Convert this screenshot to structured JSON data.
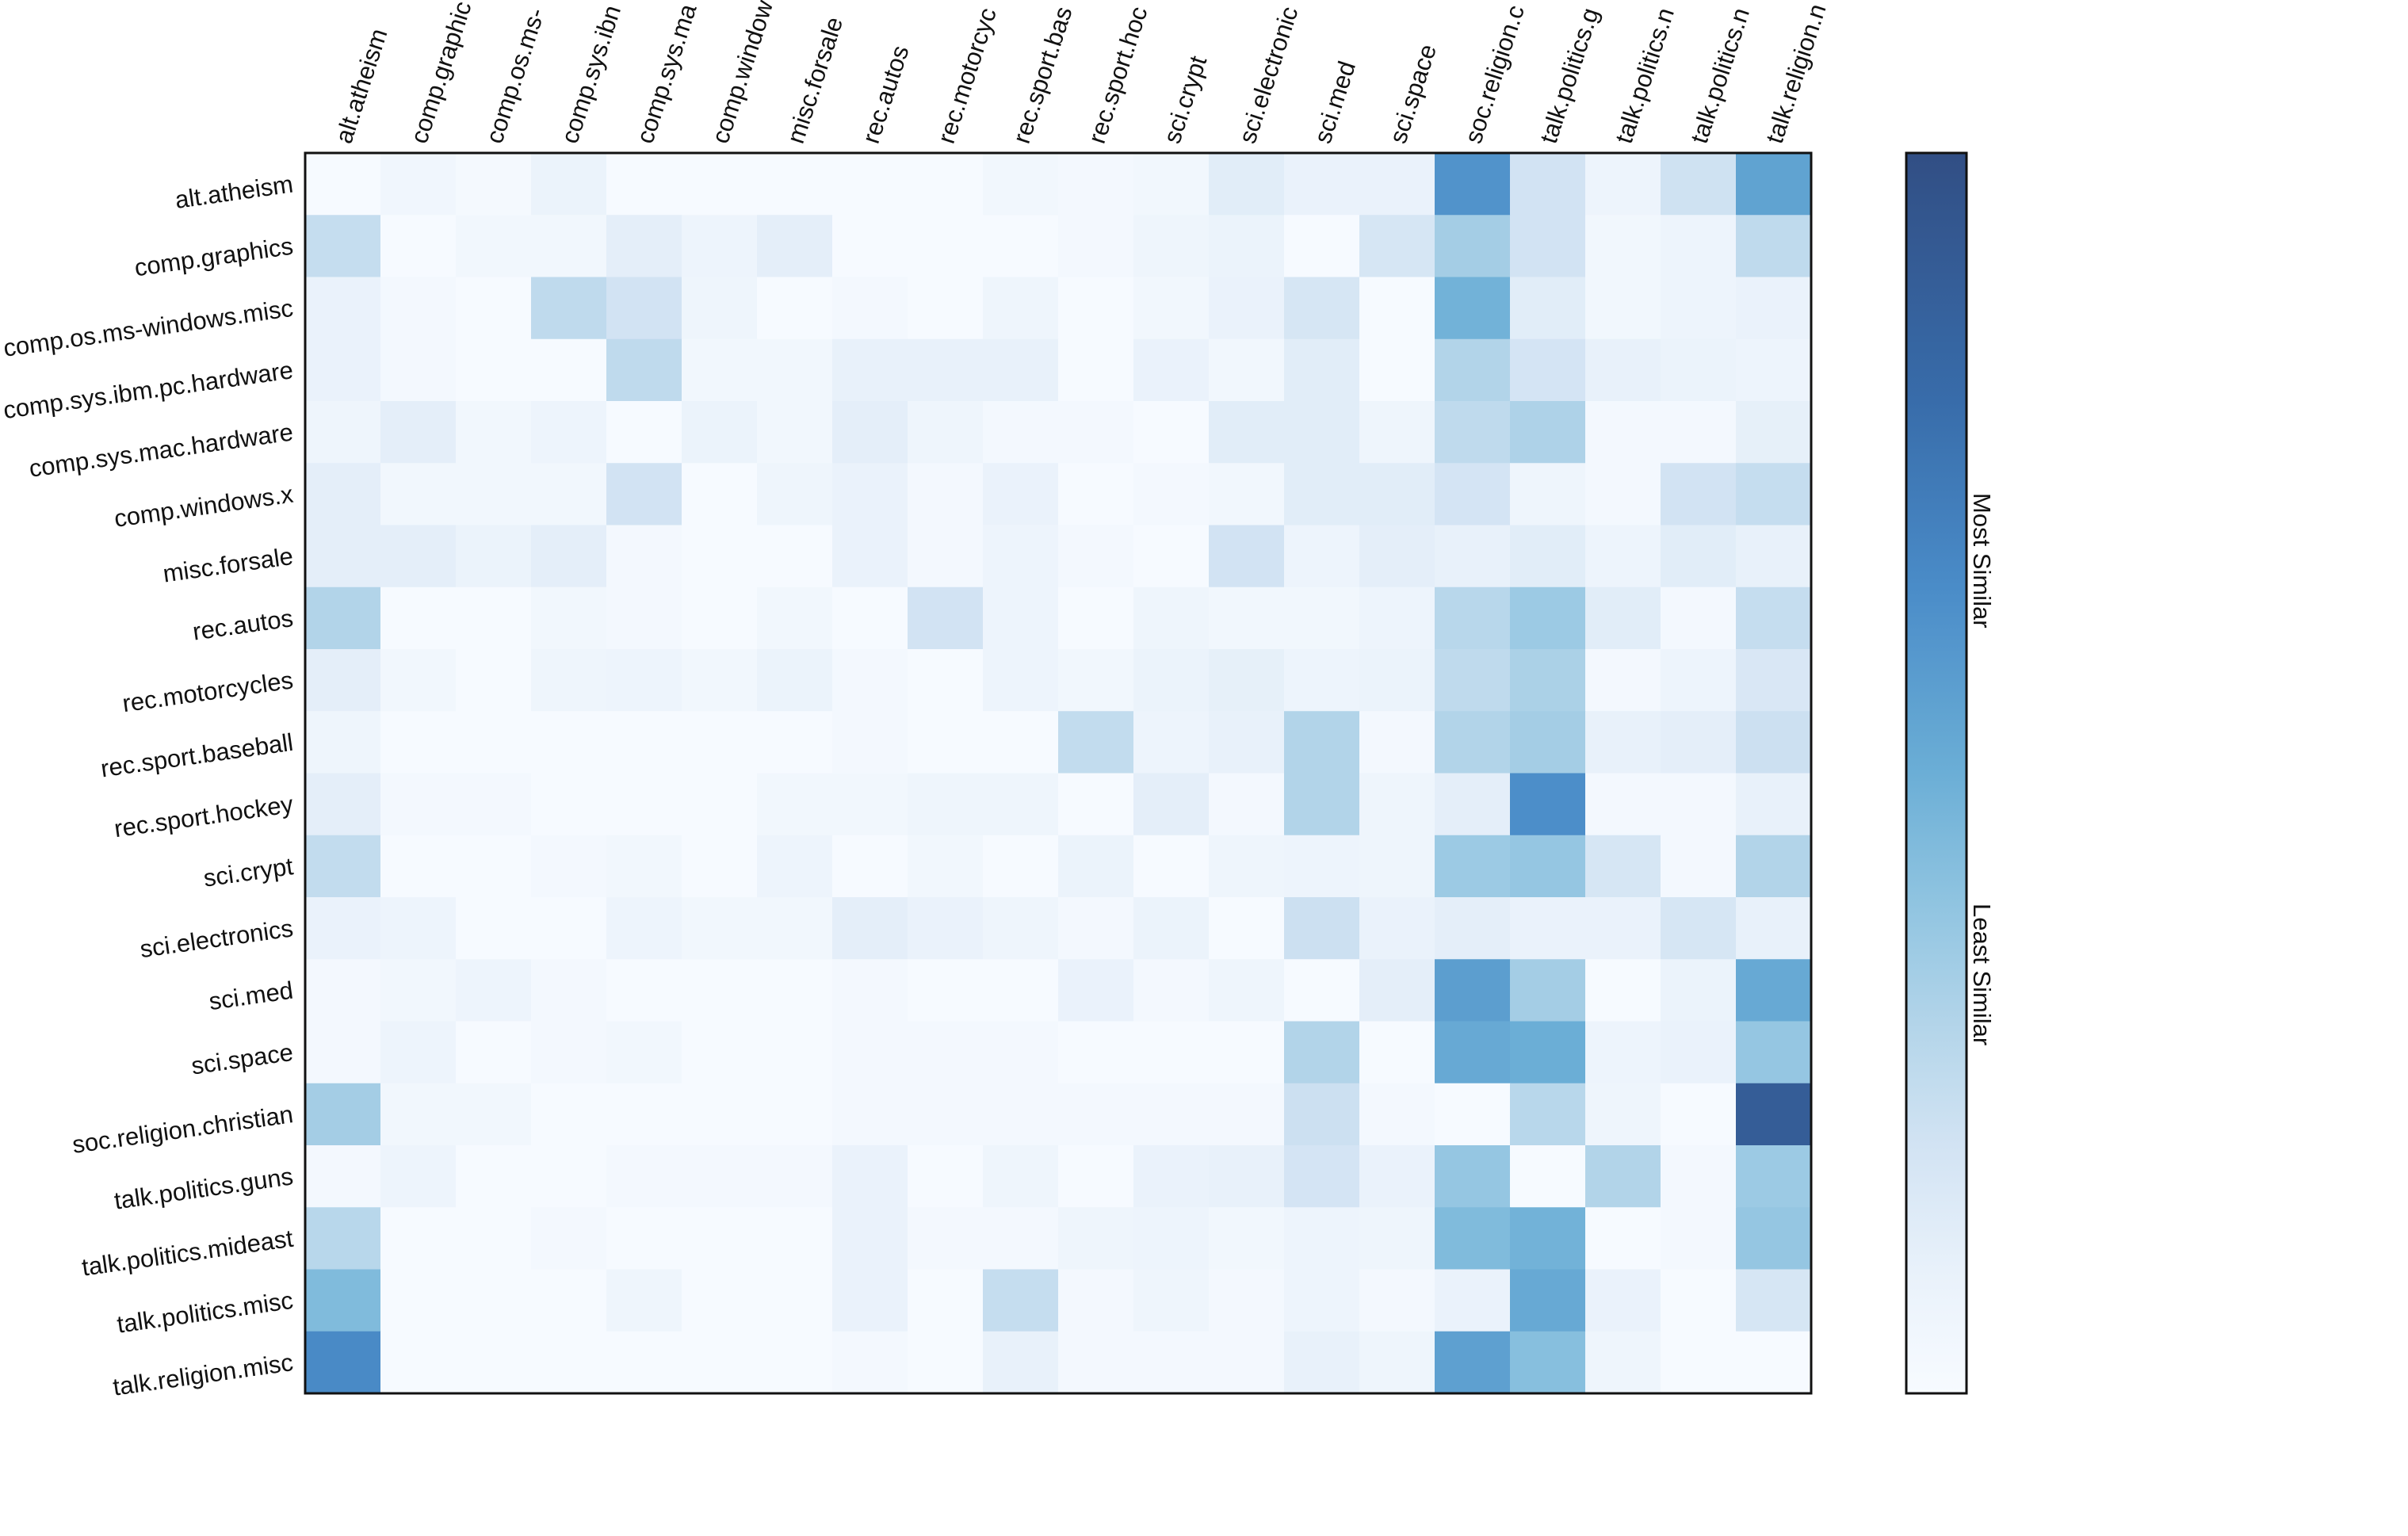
{
  "chart_data": {
    "type": "heatmap",
    "title": "",
    "xlabel": "",
    "ylabel": "",
    "x_categories": [
      "alt.atheism",
      "comp.graphics",
      "comp.os.ms-windows.misc",
      "comp.sys.ibm.pc.hardware",
      "comp.sys.mac.hardware",
      "comp.windows.x",
      "misc.forsale",
      "rec.autos",
      "rec.motorcycles",
      "rec.sport.baseball",
      "rec.sport.hockey",
      "sci.crypt",
      "sci.electronics",
      "sci.med",
      "sci.space",
      "soc.religion.christian",
      "talk.politics.guns",
      "talk.politics.mideast",
      "talk.politics.misc",
      "talk.religion.misc"
    ],
    "x_tick_labels_visible": [
      "alt.atheism",
      "comp.graphic",
      "comp.os.ms-",
      "comp.sys.ibn",
      "comp.sys.ma",
      "comp.window",
      "misc.forsale",
      "rec.autos",
      "rec.motorcyc",
      "rec.sport.bas",
      "rec.sport.hoc",
      "sci.crypt",
      "sci.electronic",
      "sci.med",
      "sci.space",
      "soc.religion.c",
      "talk.politics.g",
      "talk.politics.n",
      "talk.politics.n",
      "talk.religion.n"
    ],
    "y_categories": [
      "alt.atheism",
      "comp.graphics",
      "comp.os.ms-windows.misc",
      "comp.sys.ibm.pc.hardware",
      "comp.sys.mac.hardware",
      "comp.windows.x",
      "misc.forsale",
      "rec.autos",
      "rec.motorcycles",
      "rec.sport.baseball",
      "rec.sport.hockey",
      "sci.crypt",
      "sci.electronics",
      "sci.med",
      "sci.space",
      "soc.religion.christian",
      "talk.politics.guns",
      "talk.politics.mideast",
      "talk.politics.misc",
      "talk.religion.misc"
    ],
    "values": [
      [
        0.01,
        0.05,
        0.02,
        0.08,
        0.01,
        0.01,
        0.01,
        0.01,
        0.01,
        0.04,
        0.03,
        0.04,
        0.13,
        0.09,
        0.09,
        0.62,
        0.2,
        0.07,
        0.21,
        0.55
      ],
      [
        0.24,
        0.01,
        0.04,
        0.04,
        0.12,
        0.07,
        0.12,
        0.01,
        0.01,
        0.01,
        0.03,
        0.06,
        0.08,
        0.01,
        0.18,
        0.34,
        0.2,
        0.04,
        0.07,
        0.26
      ],
      [
        0.09,
        0.03,
        0.01,
        0.26,
        0.2,
        0.06,
        0.01,
        0.03,
        0.01,
        0.06,
        0.01,
        0.04,
        0.09,
        0.18,
        0.01,
        0.48,
        0.13,
        0.04,
        0.07,
        0.09
      ],
      [
        0.09,
        0.03,
        0.01,
        0.01,
        0.26,
        0.04,
        0.04,
        0.1,
        0.1,
        0.1,
        0.01,
        0.09,
        0.04,
        0.13,
        0.01,
        0.3,
        0.19,
        0.1,
        0.08,
        0.07
      ],
      [
        0.06,
        0.12,
        0.04,
        0.07,
        0.01,
        0.08,
        0.04,
        0.12,
        0.06,
        0.03,
        0.03,
        0.01,
        0.13,
        0.13,
        0.06,
        0.26,
        0.31,
        0.03,
        0.03,
        0.11
      ],
      [
        0.12,
        0.04,
        0.04,
        0.04,
        0.2,
        0.01,
        0.06,
        0.09,
        0.03,
        0.09,
        0.01,
        0.03,
        0.04,
        0.13,
        0.13,
        0.19,
        0.06,
        0.03,
        0.2,
        0.24
      ],
      [
        0.12,
        0.12,
        0.08,
        0.12,
        0.03,
        0.01,
        0.01,
        0.09,
        0.03,
        0.07,
        0.03,
        0.01,
        0.2,
        0.07,
        0.12,
        0.1,
        0.13,
        0.07,
        0.13,
        0.1
      ],
      [
        0.3,
        0.01,
        0.01,
        0.04,
        0.03,
        0.01,
        0.04,
        0.01,
        0.2,
        0.07,
        0.01,
        0.06,
        0.04,
        0.04,
        0.07,
        0.28,
        0.36,
        0.13,
        0.03,
        0.24
      ],
      [
        0.12,
        0.04,
        0.01,
        0.06,
        0.07,
        0.04,
        0.08,
        0.03,
        0.01,
        0.07,
        0.04,
        0.08,
        0.11,
        0.07,
        0.08,
        0.26,
        0.32,
        0.03,
        0.07,
        0.17
      ],
      [
        0.06,
        0.01,
        0.01,
        0.01,
        0.01,
        0.01,
        0.01,
        0.03,
        0.01,
        0.01,
        0.25,
        0.07,
        0.1,
        0.3,
        0.03,
        0.3,
        0.34,
        0.1,
        0.12,
        0.22
      ],
      [
        0.12,
        0.03,
        0.03,
        0.01,
        0.01,
        0.01,
        0.04,
        0.04,
        0.06,
        0.06,
        0.01,
        0.12,
        0.03,
        0.3,
        0.06,
        0.12,
        0.64,
        0.03,
        0.03,
        0.1
      ],
      [
        0.25,
        0.01,
        0.01,
        0.03,
        0.04,
        0.01,
        0.07,
        0.01,
        0.04,
        0.01,
        0.08,
        0.01,
        0.06,
        0.07,
        0.06,
        0.36,
        0.38,
        0.18,
        0.03,
        0.3
      ],
      [
        0.09,
        0.07,
        0.01,
        0.01,
        0.07,
        0.04,
        0.04,
        0.12,
        0.09,
        0.06,
        0.03,
        0.08,
        0.01,
        0.22,
        0.09,
        0.12,
        0.09,
        0.09,
        0.18,
        0.1
      ],
      [
        0.03,
        0.04,
        0.07,
        0.03,
        0.01,
        0.01,
        0.01,
        0.03,
        0.01,
        0.01,
        0.09,
        0.03,
        0.06,
        0.01,
        0.12,
        0.57,
        0.34,
        0.01,
        0.08,
        0.52
      ],
      [
        0.03,
        0.07,
        0.01,
        0.03,
        0.04,
        0.01,
        0.01,
        0.03,
        0.03,
        0.03,
        0.01,
        0.01,
        0.01,
        0.3,
        0.01,
        0.52,
        0.5,
        0.07,
        0.09,
        0.38
      ],
      [
        0.34,
        0.04,
        0.04,
        0.01,
        0.01,
        0.01,
        0.01,
        0.03,
        0.03,
        0.03,
        0.03,
        0.03,
        0.03,
        0.22,
        0.03,
        0.01,
        0.28,
        0.06,
        0.01,
        0.9
      ],
      [
        0.03,
        0.07,
        0.01,
        0.01,
        0.03,
        0.03,
        0.03,
        0.09,
        0.01,
        0.06,
        0.01,
        0.09,
        0.1,
        0.19,
        0.09,
        0.38,
        0.01,
        0.3,
        0.03,
        0.36
      ],
      [
        0.28,
        0.01,
        0.01,
        0.03,
        0.01,
        0.01,
        0.01,
        0.09,
        0.03,
        0.03,
        0.06,
        0.07,
        0.04,
        0.07,
        0.06,
        0.44,
        0.48,
        0.01,
        0.03,
        0.38
      ],
      [
        0.44,
        0.01,
        0.01,
        0.01,
        0.06,
        0.01,
        0.01,
        0.09,
        0.01,
        0.24,
        0.03,
        0.06,
        0.03,
        0.07,
        0.03,
        0.09,
        0.52,
        0.09,
        0.01,
        0.18
      ],
      [
        0.66,
        0.01,
        0.01,
        0.01,
        0.01,
        0.01,
        0.01,
        0.03,
        0.01,
        0.1,
        0.03,
        0.03,
        0.03,
        0.1,
        0.06,
        0.56,
        0.42,
        0.06,
        0.01,
        0.01
      ]
    ],
    "vmin": 0,
    "vmax": 1,
    "colormap": "Blues",
    "colorbar": {
      "label_top": "Most Similar",
      "label_bottom": "Least Similar",
      "color_low": "#f7fbff",
      "color_high": "#31558f"
    },
    "grid": false,
    "legend": "colorbar-right"
  }
}
